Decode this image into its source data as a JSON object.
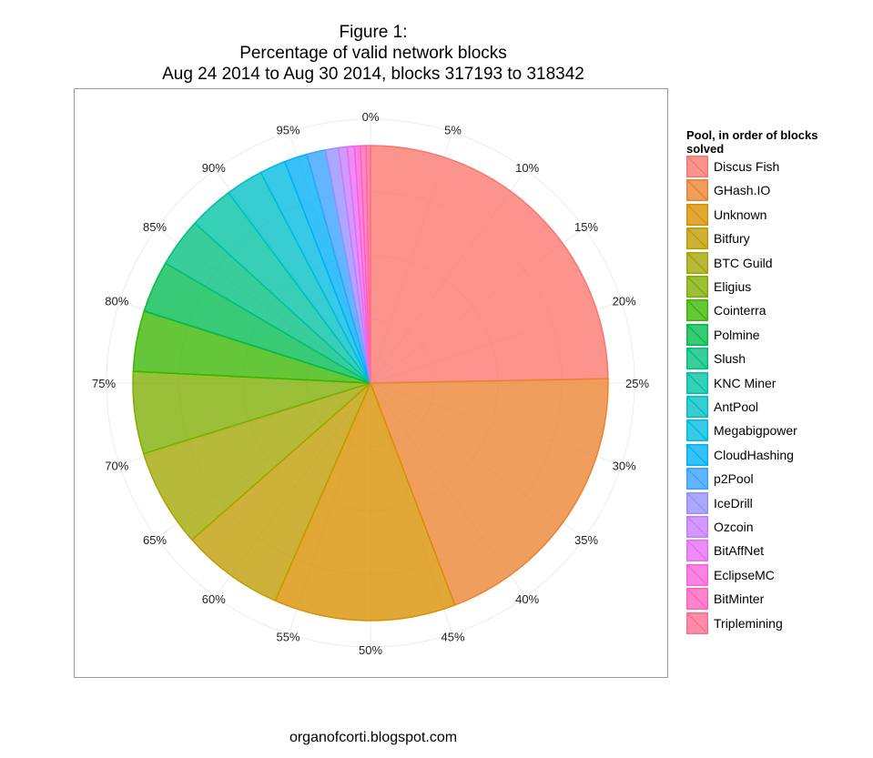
{
  "title": {
    "line1": "Figure 1:",
    "line2": "Percentage of valid network blocks",
    "line3": "Aug 24 2014 to Aug 30 2014, blocks 317193 to 318342"
  },
  "footer": "organofcorti.blogspot.com",
  "chart_data": {
    "type": "pie",
    "title": "Figure 1: Percentage of valid network blocks Aug 24 2014 to Aug 30 2014, blocks 317193 to 318342",
    "legend_title": "Pool, in order of blocks solved",
    "legend_position": "right",
    "direction": "clockwise from top",
    "angle_ticks": [
      "0%",
      "5%",
      "10%",
      "15%",
      "20%",
      "25%",
      "30%",
      "35%",
      "40%",
      "45%",
      "50%",
      "55%",
      "60%",
      "65%",
      "70%",
      "75%",
      "80%",
      "85%",
      "90%",
      "95%"
    ],
    "categories": [
      "Discus Fish",
      "GHash.IO",
      "Unknown",
      "Bitfury",
      "BTC Guild",
      "Eligius",
      "Cointerra",
      "Polmine",
      "Slush",
      "KNC Miner",
      "AntPool",
      "Megabigpower",
      "CloudHashing",
      "p2Pool",
      "IceDrill",
      "Ozcoin",
      "BitAffNet",
      "EclipseMC",
      "BitMinter",
      "Triplemining"
    ],
    "values": [
      25.2,
      19.9,
      12.6,
      7.1,
      6.8,
      5.7,
      4.2,
      3.6,
      3.4,
      3.1,
      2.6,
      1.8,
      1.6,
      1.3,
      0.9,
      0.6,
      0.5,
      0.4,
      0.4,
      0.3
    ],
    "colors": [
      "#F8766D",
      "#EA8331",
      "#D89000",
      "#C09B00",
      "#A3A500",
      "#7CAE00",
      "#39B600",
      "#00BB4E",
      "#00BF7D",
      "#00C1A3",
      "#00BFC4",
      "#00BAE0",
      "#00B0F6",
      "#35A2FF",
      "#9590FF",
      "#C77CFF",
      "#E76BF3",
      "#FA62DB",
      "#FF62BC",
      "#FF6C91"
    ]
  }
}
